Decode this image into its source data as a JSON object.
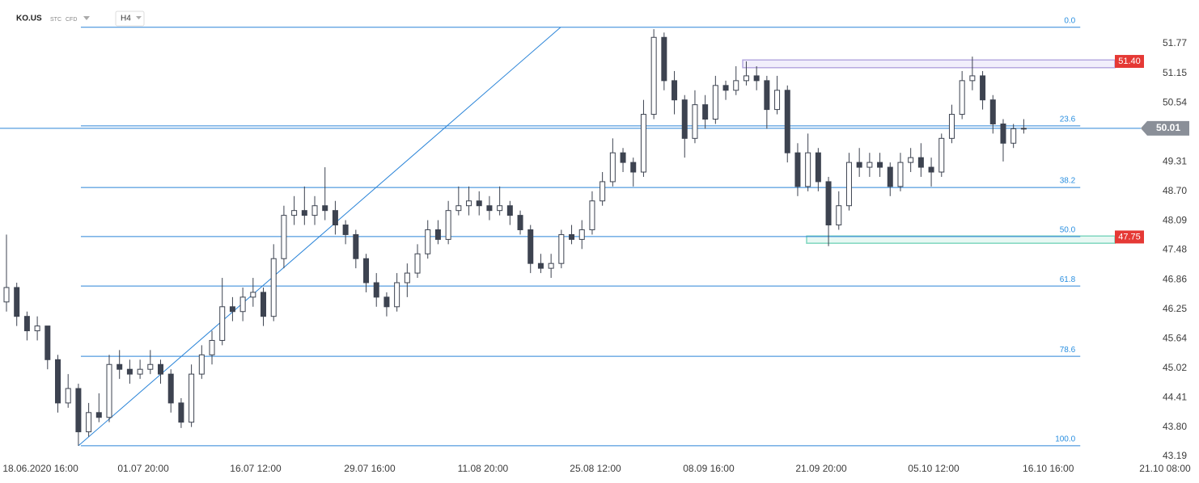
{
  "chart_data": {
    "type": "candlestick",
    "symbol": "KO.US",
    "tags": [
      "STC",
      "CFD"
    ],
    "timeframe": "H4",
    "ylim": [
      43.19,
      51.77
    ],
    "yticks": [
      51.77,
      51.15,
      50.54,
      49.31,
      {
        "value": 48.7,
        "label": "48.70"
      },
      48.09,
      47.48,
      46.86,
      46.25,
      45.64,
      45.02,
      44.41,
      {
        "value": 43.8,
        "label": "43.80"
      },
      43.19
    ],
    "xlim": [
      -0.63,
      109.6
    ],
    "xticks": [
      {
        "value": 3.31,
        "label": "18.06.2020 16:00"
      },
      {
        "value": 13.31,
        "label": "01.07 20:00"
      },
      {
        "value": 24.25,
        "label": "16.07 12:00"
      },
      {
        "value": 35.35,
        "label": "29.07 16:00"
      },
      {
        "value": 46.37,
        "label": "11.08 20:00"
      },
      {
        "value": 57.32,
        "label": "25.08 12:00"
      },
      {
        "value": 68.34,
        "label": "08.09 16:00"
      },
      {
        "value": 79.29,
        "label": "21.09 20:00"
      },
      {
        "value": 90.23,
        "label": "05.10 12:00"
      },
      {
        "value": 101.39,
        "label": "16.10 16:00"
      },
      {
        "value": 112.75,
        "label": "21.10 08:00"
      }
    ],
    "up_color": "#ffffff",
    "down_color": "#3d4350",
    "line_color": "#2a84d8",
    "ohlc": [
      [
        46.4,
        47.8,
        46.2,
        46.7
      ],
      [
        46.7,
        46.8,
        45.9,
        46.1
      ],
      [
        46.1,
        46.2,
        45.6,
        45.8
      ],
      [
        45.8,
        46.1,
        45.6,
        45.9
      ],
      [
        45.9,
        45.9,
        45.0,
        45.2
      ],
      [
        45.2,
        45.3,
        44.1,
        44.3
      ],
      [
        44.3,
        44.9,
        44.2,
        44.6
      ],
      [
        44.6,
        44.7,
        43.41,
        43.7
      ],
      [
        43.7,
        44.3,
        43.6,
        44.1
      ],
      [
        44.1,
        44.5,
        43.9,
        44.0
      ],
      [
        44.0,
        45.3,
        43.9,
        45.1
      ],
      [
        45.1,
        45.4,
        44.8,
        45.0
      ],
      [
        45.0,
        45.2,
        44.7,
        44.9
      ],
      [
        44.9,
        45.2,
        44.8,
        45.0
      ],
      [
        45.0,
        45.4,
        44.9,
        45.1
      ],
      [
        45.1,
        45.2,
        44.7,
        44.9
      ],
      [
        44.9,
        45.0,
        44.1,
        44.3
      ],
      [
        44.3,
        44.4,
        43.78,
        43.9
      ],
      [
        43.9,
        45.1,
        43.8,
        44.9
      ],
      [
        44.9,
        45.5,
        44.8,
        45.3
      ],
      [
        45.3,
        45.8,
        45.1,
        45.6
      ],
      [
        45.6,
        46.9,
        45.5,
        46.3
      ],
      [
        46.3,
        46.5,
        46.0,
        46.2
      ],
      [
        46.2,
        46.7,
        46.0,
        46.5
      ],
      [
        46.5,
        46.9,
        46.3,
        46.6
      ],
      [
        46.6,
        46.7,
        45.9,
        46.1
      ],
      [
        46.1,
        47.6,
        46.0,
        47.3
      ],
      [
        47.3,
        48.4,
        47.1,
        48.2
      ],
      [
        48.2,
        48.6,
        48.0,
        48.3
      ],
      [
        48.3,
        48.8,
        48.0,
        48.2
      ],
      [
        48.2,
        48.6,
        48.0,
        48.4
      ],
      [
        48.4,
        49.2,
        48.1,
        48.3
      ],
      [
        48.3,
        48.5,
        47.8,
        48.0
      ],
      [
        48.0,
        48.1,
        47.6,
        47.8
      ],
      [
        47.8,
        47.9,
        47.1,
        47.3
      ],
      [
        47.3,
        47.4,
        46.6,
        46.8
      ],
      [
        46.8,
        47.0,
        46.3,
        46.5
      ],
      [
        46.5,
        46.6,
        46.1,
        46.3
      ],
      [
        46.3,
        47.0,
        46.2,
        46.8
      ],
      [
        46.8,
        47.2,
        46.5,
        47.0
      ],
      [
        47.0,
        47.6,
        46.9,
        47.4
      ],
      [
        47.4,
        48.1,
        47.3,
        47.9
      ],
      [
        47.9,
        48.1,
        47.6,
        47.7
      ],
      [
        47.7,
        48.5,
        47.6,
        48.3
      ],
      [
        48.3,
        48.8,
        48.2,
        48.4
      ],
      [
        48.4,
        48.8,
        48.2,
        48.5
      ],
      [
        48.5,
        48.7,
        48.2,
        48.4
      ],
      [
        48.4,
        48.6,
        48.1,
        48.3
      ],
      [
        48.3,
        48.8,
        48.2,
        48.4
      ],
      [
        48.4,
        48.5,
        48.0,
        48.2
      ],
      [
        48.2,
        48.3,
        47.8,
        47.9
      ],
      [
        47.9,
        48.0,
        47.0,
        47.2
      ],
      [
        47.2,
        47.4,
        47.0,
        47.1
      ],
      [
        47.1,
        47.4,
        46.9,
        47.2
      ],
      [
        47.2,
        47.9,
        47.1,
        47.8
      ],
      [
        47.8,
        48.0,
        47.6,
        47.7
      ],
      [
        47.7,
        48.1,
        47.5,
        47.9
      ],
      [
        47.9,
        48.7,
        47.8,
        48.5
      ],
      [
        48.5,
        49.1,
        48.4,
        48.9
      ],
      [
        48.9,
        49.8,
        48.8,
        49.5
      ],
      [
        49.5,
        49.6,
        49.1,
        49.3
      ],
      [
        49.3,
        49.4,
        48.8,
        49.1
      ],
      [
        49.1,
        50.6,
        49.0,
        50.3
      ],
      [
        50.3,
        52.07,
        50.2,
        51.9
      ],
      [
        51.9,
        52.0,
        50.8,
        51.0
      ],
      [
        51.0,
        51.2,
        50.3,
        50.6
      ],
      [
        50.6,
        50.7,
        49.4,
        49.8
      ],
      [
        49.8,
        50.8,
        49.7,
        50.5
      ],
      [
        50.5,
        50.7,
        50.0,
        50.2
      ],
      [
        50.2,
        51.1,
        50.1,
        50.9
      ],
      [
        50.9,
        51.0,
        50.6,
        50.8
      ],
      [
        50.8,
        51.3,
        50.7,
        51.0
      ],
      [
        51.0,
        51.4,
        50.9,
        51.1
      ],
      [
        51.1,
        51.3,
        50.8,
        51.0
      ],
      [
        51.0,
        51.1,
        50.0,
        50.4
      ],
      [
        50.4,
        51.1,
        50.3,
        50.8
      ],
      [
        50.8,
        50.9,
        49.3,
        49.5
      ],
      [
        49.5,
        49.7,
        48.6,
        48.8
      ],
      [
        48.8,
        49.9,
        48.7,
        49.5
      ],
      [
        49.5,
        49.6,
        48.7,
        48.9
      ],
      [
        48.9,
        49.0,
        47.56,
        48.0
      ],
      [
        48.0,
        48.7,
        47.9,
        48.4
      ],
      [
        48.4,
        49.5,
        48.3,
        49.3
      ],
      [
        49.3,
        49.6,
        49.0,
        49.2
      ],
      [
        49.2,
        49.5,
        49.0,
        49.3
      ],
      [
        49.3,
        49.5,
        49.0,
        49.2
      ],
      [
        49.2,
        49.3,
        48.6,
        48.8
      ],
      [
        48.8,
        49.5,
        48.7,
        49.3
      ],
      [
        49.3,
        49.6,
        49.1,
        49.4
      ],
      [
        49.4,
        49.7,
        49.0,
        49.2
      ],
      [
        49.2,
        49.4,
        48.8,
        49.1
      ],
      [
        49.1,
        49.9,
        49.0,
        49.8
      ],
      [
        49.8,
        50.5,
        49.7,
        50.3
      ],
      [
        50.3,
        51.2,
        50.2,
        51.0
      ],
      [
        51.0,
        51.5,
        50.8,
        51.1
      ],
      [
        51.1,
        51.2,
        50.4,
        50.6
      ],
      [
        50.6,
        50.7,
        49.9,
        50.1
      ],
      [
        50.1,
        50.2,
        49.32,
        49.7
      ],
      [
        49.7,
        50.1,
        49.6,
        50.0
      ],
      [
        50.0,
        50.2,
        49.9,
        50.01
      ]
    ],
    "fib_x": [
      7.24,
      104.5
    ],
    "fib_levels": [
      {
        "value": 52.11,
        "label": "0.0"
      },
      {
        "value": 50.06,
        "label": "23.6"
      },
      {
        "value": 48.78,
        "label": "38.2"
      },
      {
        "value": 47.76,
        "label": "50.0"
      },
      {
        "value": 46.73,
        "label": "61.8"
      },
      {
        "value": 45.27,
        "label": "78.6"
      },
      {
        "value": 43.41,
        "label": "100.0"
      }
    ],
    "trendline": {
      "x": [
        7.0,
        53.93
      ],
      "y": [
        43.41,
        52.11
      ]
    },
    "zones": [
      {
        "price": {
          "value": 51.4,
          "label": "51.40"
        },
        "high": 51.43,
        "low": 51.27,
        "x": [
          71.65,
          107.87
        ],
        "color": "#b6a9e0",
        "fill": "#f1eefb"
      },
      {
        "price": 47.75,
        "high": 47.77,
        "low": 47.62,
        "x": [
          77.87,
          107.87
        ],
        "color": "#7fd6bf",
        "fill": "#e8f8f3"
      }
    ],
    "current_price": 50.01
  }
}
